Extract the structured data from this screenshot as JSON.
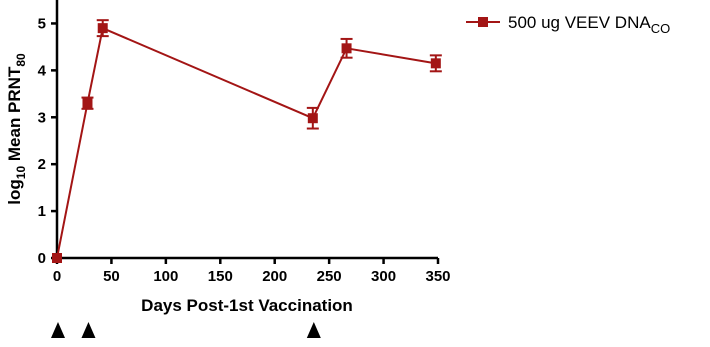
{
  "chart_data": {
    "type": "line",
    "xlabel": "Days Post-1st Vaccination",
    "ylabel": {
      "prefix": "log",
      "prefix_sub": "10",
      "main": " Mean PRNT",
      "main_sub": "80"
    },
    "xlim": [
      0,
      350
    ],
    "ylim": [
      0,
      5.5
    ],
    "xticks": [
      0,
      50,
      100,
      150,
      200,
      250,
      300,
      350
    ],
    "yticks": [
      0,
      1,
      2,
      3,
      4,
      5
    ],
    "grid": false,
    "legend": "top-right",
    "series": [
      {
        "name": "500 ug VEEV DNA",
        "name_sub": "CO",
        "color": "#a31515",
        "marker": "square",
        "x": [
          0,
          28,
          42,
          235,
          266,
          348
        ],
        "y": [
          0.0,
          3.3,
          4.9,
          2.98,
          4.47,
          4.15
        ],
        "error": [
          0.0,
          0.12,
          0.17,
          0.22,
          0.2,
          0.17
        ]
      }
    ],
    "annotations": {
      "vaccination_marker_days": [
        0,
        28,
        235
      ]
    }
  }
}
